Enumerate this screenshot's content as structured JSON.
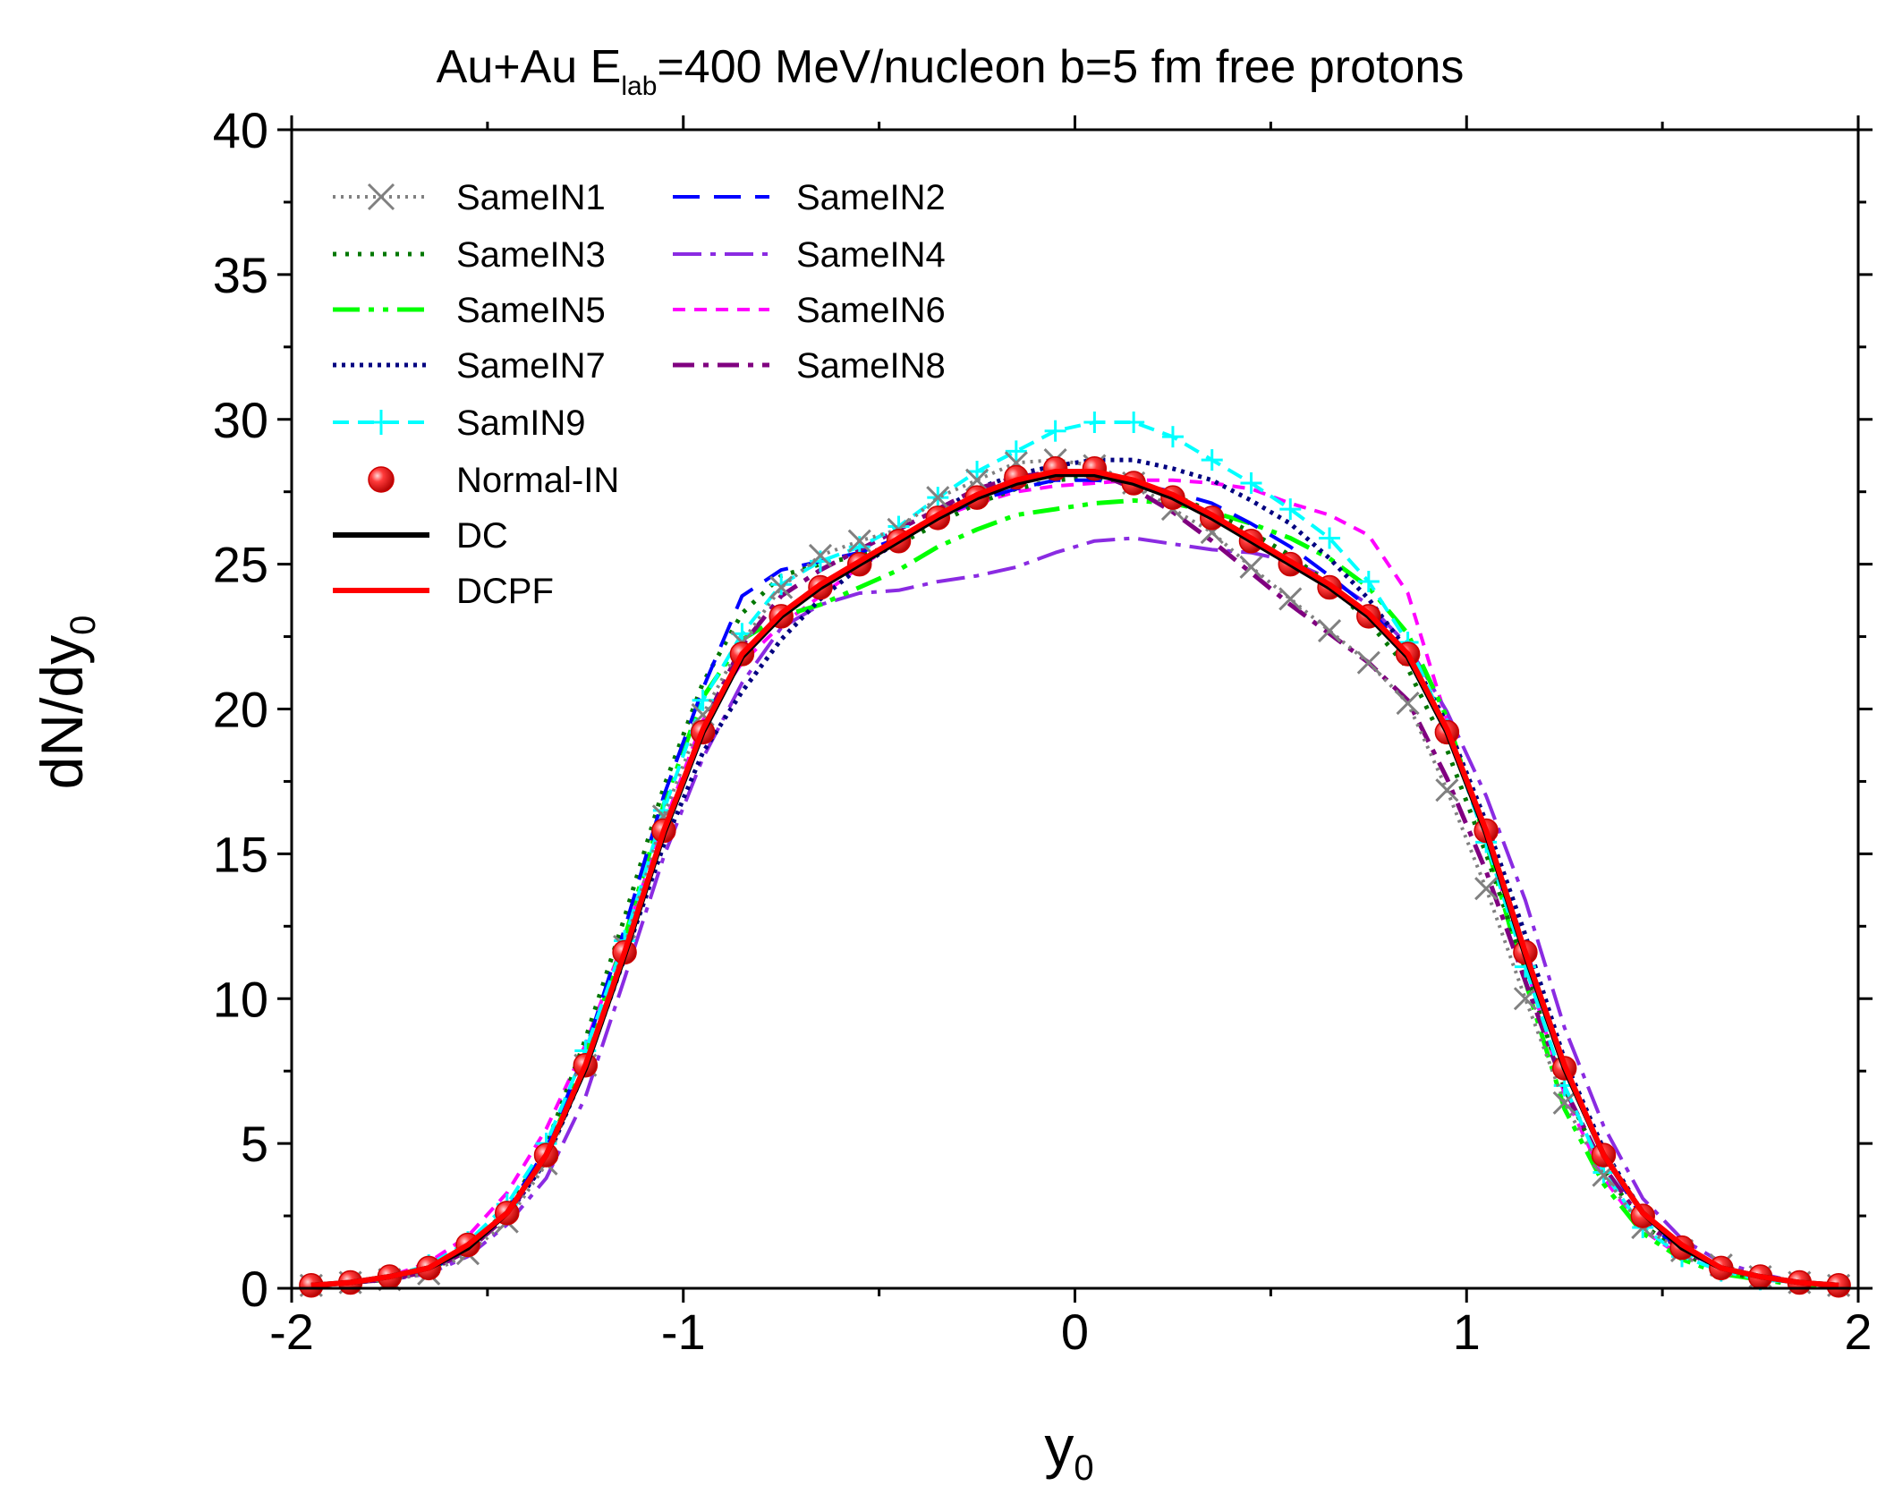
{
  "chart_data": {
    "type": "line",
    "title": {
      "prefix": "Au+Au  E",
      "subscript": "lab",
      "suffix": "=400 MeV/nucleon  b=5 fm  free protons"
    },
    "xlabel": {
      "main": "y",
      "sub": "0"
    },
    "ylabel": {
      "main": "dN/dy",
      "sub": "0"
    },
    "xlim": [
      -2,
      2
    ],
    "ylim": [
      0,
      40
    ],
    "xticks": [
      -2,
      -1,
      0,
      1,
      2
    ],
    "yticks": [
      0,
      5,
      10,
      15,
      20,
      25,
      30,
      35,
      40
    ],
    "x": [
      -1.95,
      -1.85,
      -1.75,
      -1.65,
      -1.55,
      -1.45,
      -1.35,
      -1.25,
      -1.15,
      -1.05,
      -0.95,
      -0.85,
      -0.75,
      -0.65,
      -0.55,
      -0.45,
      -0.35,
      -0.25,
      -0.15,
      -0.05,
      0.05,
      0.15,
      0.25,
      0.35,
      0.45,
      0.55,
      0.65,
      0.75,
      0.85,
      0.95,
      1.05,
      1.15,
      1.25,
      1.35,
      1.45,
      1.55,
      1.65,
      1.75,
      1.85,
      1.95
    ],
    "series": [
      {
        "name": "SameIN1",
        "color": "#808080",
        "dash": "3,6",
        "width": 4,
        "marker": "x",
        "values": [
          0.1,
          0.2,
          0.3,
          0.5,
          1.2,
          2.3,
          4.3,
          7.7,
          11.8,
          16.3,
          19.8,
          22.3,
          24.2,
          25.3,
          25.8,
          26.2,
          27.3,
          27.9,
          28.5,
          28.6,
          28.4,
          27.8,
          26.9,
          26.1,
          24.9,
          23.8,
          22.7,
          21.6,
          20.2,
          17.2,
          13.8,
          10.0,
          6.4,
          3.9,
          2.1,
          1.3,
          0.8,
          0.4,
          0.2,
          0.1
        ]
      },
      {
        "name": "SameIN2",
        "color": "#0000ff",
        "dash": "30,16",
        "width": 4,
        "values": [
          0.1,
          0.2,
          0.3,
          0.6,
          1.4,
          2.7,
          4.8,
          8.2,
          12.4,
          17.0,
          20.7,
          23.9,
          24.8,
          25.1,
          25.4,
          25.9,
          26.6,
          27.2,
          27.6,
          27.9,
          27.9,
          27.8,
          27.5,
          27.1,
          26.4,
          25.6,
          24.6,
          23.5,
          21.9,
          19.2,
          15.6,
          11.8,
          7.5,
          4.6,
          2.4,
          1.3,
          0.7,
          0.4,
          0.2,
          0.1
        ]
      },
      {
        "name": "SameIN3",
        "color": "#007700",
        "dash": "4,10",
        "width": 5,
        "values": [
          0.1,
          0.2,
          0.3,
          0.6,
          1.4,
          2.7,
          4.9,
          8.6,
          12.8,
          17.3,
          20.9,
          23.3,
          24.6,
          25.0,
          25.3,
          25.7,
          26.4,
          27.1,
          27.6,
          27.9,
          28.0,
          27.8,
          27.4,
          26.8,
          26.1,
          25.3,
          24.3,
          23.0,
          21.4,
          18.6,
          15.0,
          11.0,
          6.9,
          4.1,
          2.2,
          1.2,
          0.6,
          0.3,
          0.2,
          0.1
        ]
      },
      {
        "name": "SameIN4",
        "color": "#8a2be2",
        "dash": "32,10,6,10",
        "width": 4,
        "values": [
          0.1,
          0.2,
          0.3,
          0.5,
          1.1,
          2.2,
          3.8,
          6.6,
          10.7,
          14.9,
          18.3,
          20.9,
          22.8,
          23.6,
          24.0,
          24.1,
          24.4,
          24.6,
          24.9,
          25.4,
          25.8,
          25.9,
          25.7,
          25.5,
          25.4,
          25.1,
          24.5,
          23.6,
          22.2,
          19.9,
          17.0,
          13.4,
          9.0,
          5.6,
          3.1,
          1.7,
          0.9,
          0.5,
          0.2,
          0.1
        ]
      },
      {
        "name": "SameIN5",
        "color": "#00ff00",
        "dash": "30,10,6,10,6,10",
        "width": 5,
        "values": [
          0.1,
          0.2,
          0.3,
          0.6,
          1.4,
          2.6,
          4.6,
          8.0,
          12.1,
          16.7,
          20.4,
          22.4,
          23.2,
          23.6,
          24.2,
          24.8,
          25.6,
          26.2,
          26.7,
          26.9,
          27.1,
          27.2,
          27.1,
          26.8,
          26.4,
          25.9,
          25.2,
          24.2,
          22.6,
          19.7,
          15.4,
          10.6,
          6.2,
          3.6,
          1.9,
          1.0,
          0.5,
          0.3,
          0.1,
          0.1
        ]
      },
      {
        "name": "SameIN6",
        "color": "#ff00ff",
        "dash": "14,10",
        "width": 4,
        "values": [
          0.1,
          0.2,
          0.4,
          0.9,
          1.8,
          3.3,
          5.5,
          8.4,
          12.1,
          16.0,
          19.6,
          21.6,
          22.9,
          23.9,
          24.9,
          25.8,
          26.6,
          27.1,
          27.5,
          27.7,
          27.8,
          27.9,
          27.9,
          27.8,
          27.6,
          27.1,
          26.7,
          26.0,
          24.0,
          19.6,
          15.5,
          11.2,
          6.7,
          3.8,
          2.0,
          1.1,
          0.6,
          0.3,
          0.2,
          0.1
        ]
      },
      {
        "name": "SameIN7",
        "color": "#000080",
        "dash": "4,6",
        "width": 5,
        "values": [
          0.1,
          0.2,
          0.3,
          0.6,
          1.3,
          2.5,
          4.4,
          7.6,
          11.4,
          15.3,
          18.5,
          20.6,
          22.4,
          23.8,
          24.9,
          25.8,
          26.8,
          27.6,
          28.1,
          28.4,
          28.6,
          28.6,
          28.3,
          27.9,
          27.2,
          26.4,
          25.2,
          23.8,
          22.0,
          19.5,
          16.1,
          12.2,
          7.9,
          4.8,
          2.6,
          1.4,
          0.7,
          0.4,
          0.2,
          0.1
        ]
      },
      {
        "name": "SameIN8",
        "color": "#800080",
        "dash": "24,10,6,10",
        "width": 5,
        "values": [
          0.1,
          0.2,
          0.3,
          0.6,
          1.3,
          2.5,
          4.5,
          7.7,
          11.5,
          15.7,
          19.4,
          22.2,
          23.9,
          24.8,
          25.5,
          26.2,
          26.9,
          27.6,
          28.0,
          28.2,
          28.2,
          27.6,
          26.8,
          25.8,
          24.7,
          23.6,
          22.6,
          21.6,
          20.3,
          17.6,
          14.4,
          10.6,
          6.9,
          4.2,
          2.3,
          1.3,
          0.7,
          0.4,
          0.2,
          0.1
        ]
      },
      {
        "name": "SamIN9",
        "color": "#00ffff",
        "dash": "18,10",
        "width": 4,
        "marker": "+",
        "values": [
          0.1,
          0.2,
          0.4,
          0.8,
          1.6,
          2.9,
          5.0,
          8.2,
          12.0,
          16.5,
          20.3,
          22.6,
          24.3,
          25.1,
          25.6,
          26.3,
          27.3,
          28.2,
          28.9,
          29.6,
          29.9,
          29.9,
          29.4,
          28.6,
          27.8,
          26.9,
          25.9,
          24.4,
          22.3,
          19.3,
          15.4,
          11.1,
          7.0,
          4.0,
          2.1,
          1.1,
          0.6,
          0.3,
          0.2,
          0.1
        ]
      },
      {
        "name": "Normal-IN",
        "color": "#ee0000",
        "marker": "ball",
        "values": [
          0.1,
          0.2,
          0.4,
          0.7,
          1.5,
          2.6,
          4.6,
          7.7,
          11.6,
          15.8,
          19.2,
          21.9,
          23.2,
          24.2,
          25.0,
          25.8,
          26.6,
          27.3,
          28.0,
          28.3,
          28.3,
          27.8,
          27.3,
          26.6,
          25.8,
          25.0,
          24.2,
          23.2,
          21.9,
          19.2,
          15.8,
          11.6,
          7.6,
          4.6,
          2.5,
          1.4,
          0.7,
          0.4,
          0.2,
          0.1
        ]
      },
      {
        "name": "DC",
        "color": "#000000",
        "dash": "",
        "width": 6,
        "values": [
          0.1,
          0.2,
          0.4,
          0.7,
          1.4,
          2.6,
          4.6,
          7.6,
          11.5,
          15.7,
          19.2,
          21.8,
          23.2,
          24.2,
          25.0,
          25.8,
          26.6,
          27.3,
          27.8,
          28.1,
          28.1,
          27.8,
          27.3,
          26.6,
          25.8,
          25.0,
          24.2,
          23.2,
          21.8,
          19.2,
          15.7,
          11.5,
          7.6,
          4.6,
          2.6,
          1.4,
          0.7,
          0.4,
          0.2,
          0.1
        ]
      },
      {
        "name": "DCPF",
        "color": "#ff0000",
        "dash": "",
        "width": 6,
        "values": [
          0.1,
          0.2,
          0.4,
          0.7,
          1.5,
          2.6,
          4.6,
          7.7,
          11.6,
          15.8,
          19.3,
          21.9,
          23.3,
          24.3,
          25.1,
          25.9,
          26.7,
          27.4,
          27.9,
          28.2,
          28.2,
          27.9,
          27.4,
          26.7,
          25.9,
          25.1,
          24.3,
          23.3,
          21.9,
          19.3,
          15.8,
          11.6,
          7.7,
          4.6,
          2.6,
          1.5,
          0.7,
          0.4,
          0.2,
          0.1
        ]
      }
    ],
    "legend_position": "top-left",
    "legend_order": [
      "SameIN1",
      "SameIN2",
      "SameIN3",
      "SameIN4",
      "SameIN5",
      "SameIN6",
      "SameIN7",
      "SameIN8",
      "SamIN9",
      "Normal-IN",
      "DC",
      "DCPF"
    ]
  }
}
